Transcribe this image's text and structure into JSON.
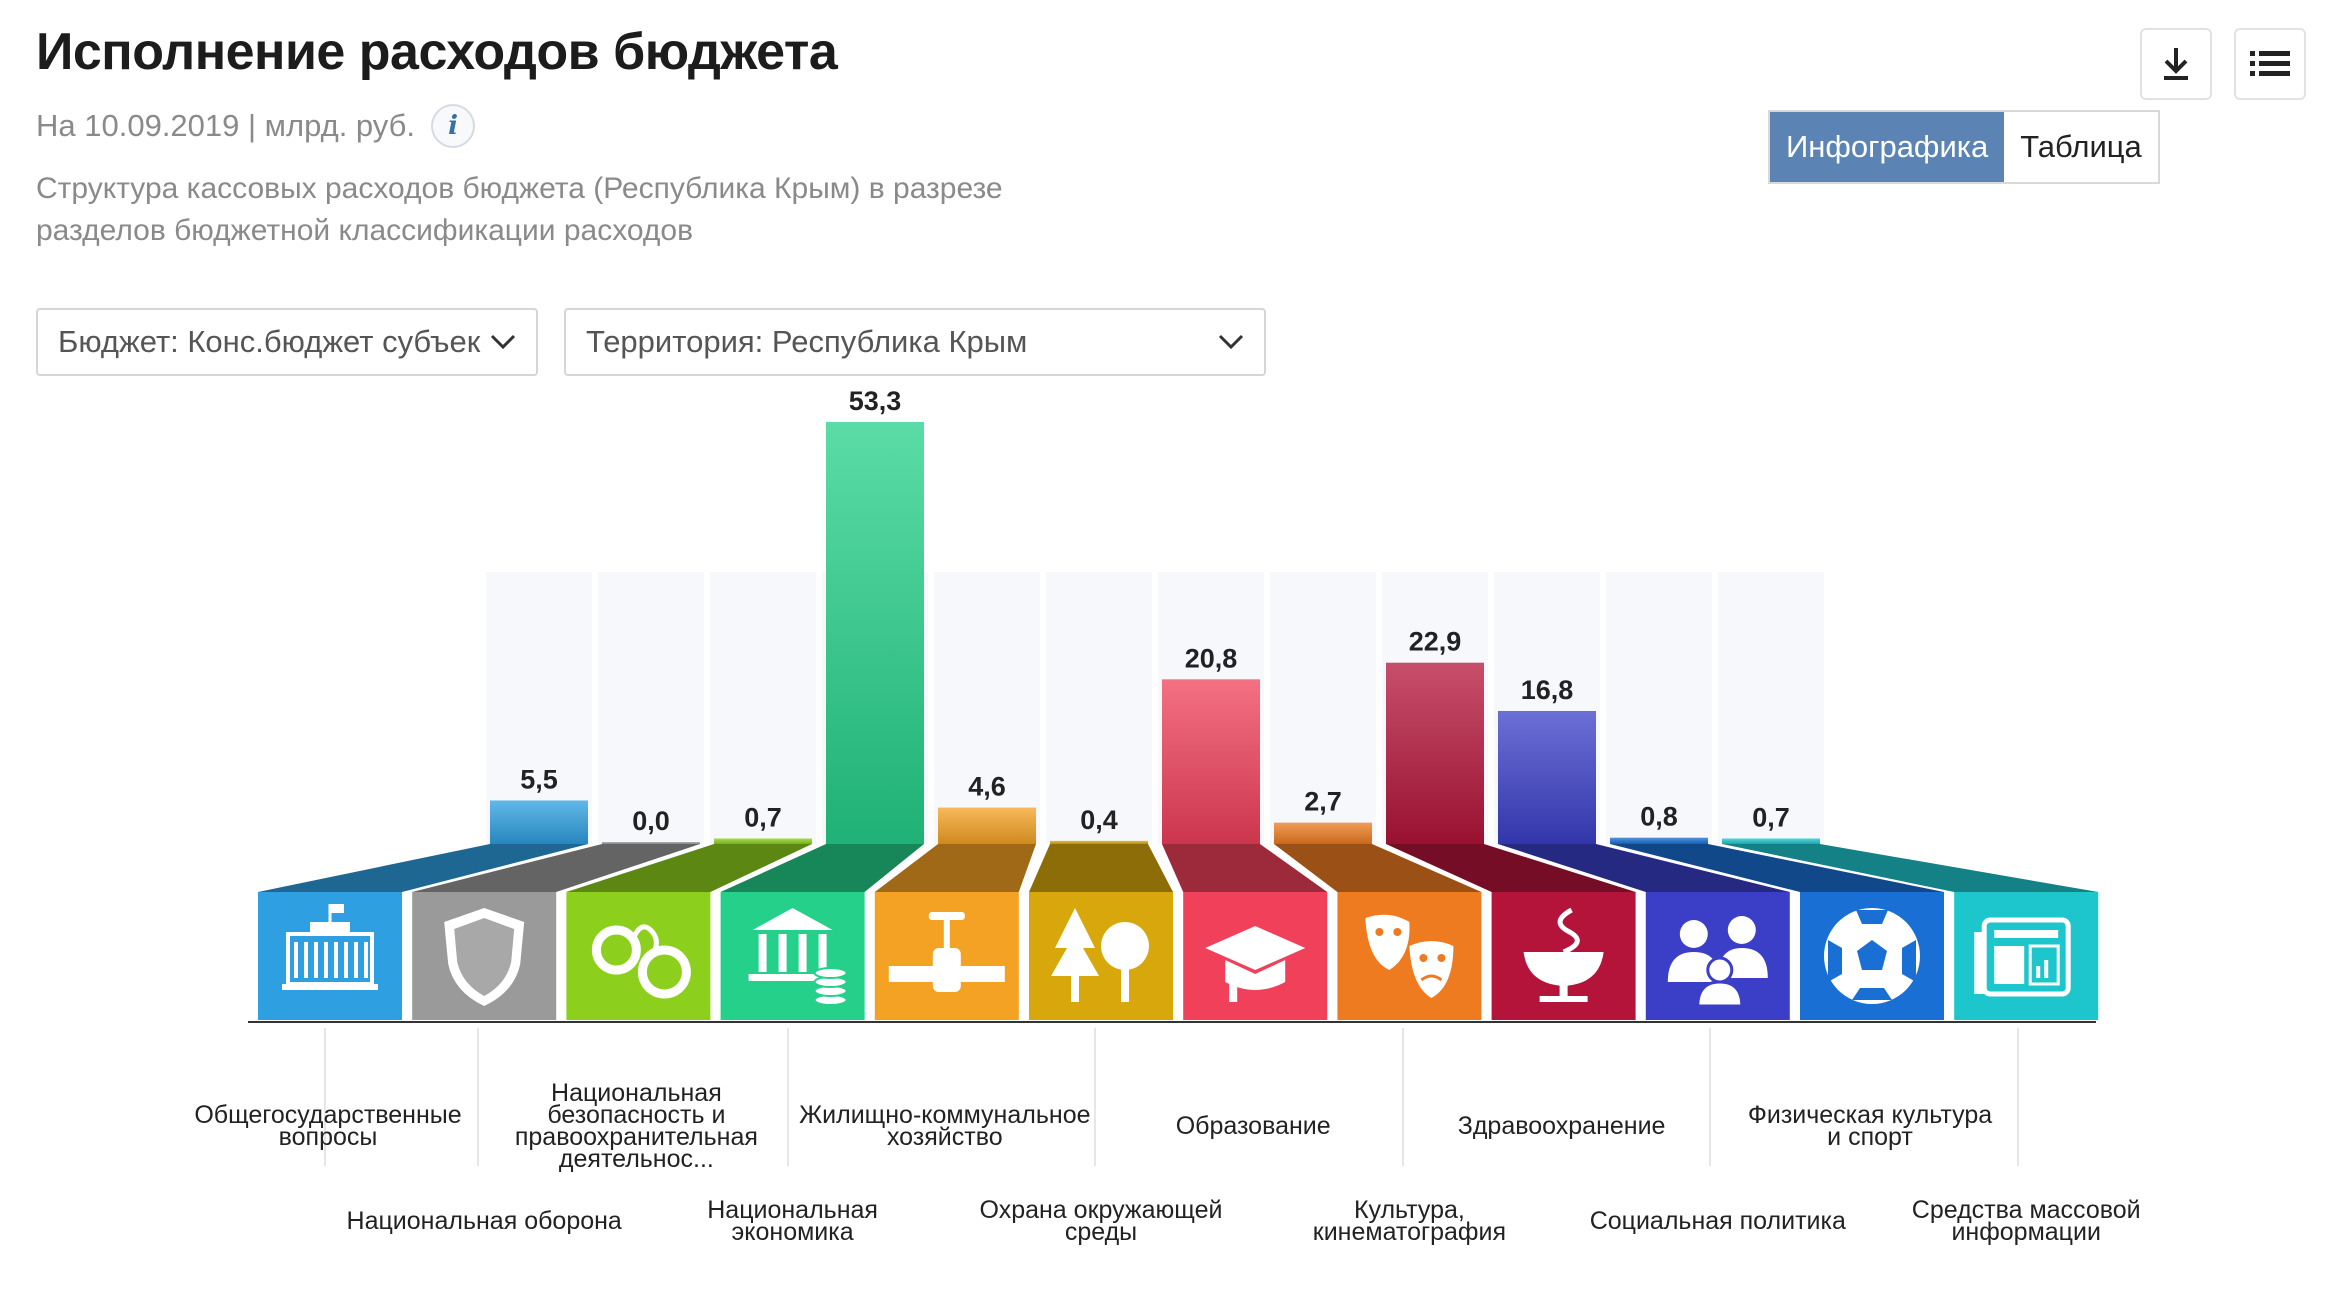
{
  "header": {
    "title": "Исполнение расходов бюджета",
    "date": "На 10.09.2019 | млрд. руб.",
    "info_glyph": "i",
    "description": "Структура кассовых расходов бюджета (Республика Крым) в разрезе разделов бюджетной классификации расходов"
  },
  "toolbar": {
    "download_icon": "download-icon",
    "menu_icon": "list-menu-icon"
  },
  "view_toggle": {
    "infographic_label": "Инфографика",
    "table_label": "Таблица",
    "active": "infographic"
  },
  "filters": {
    "budget": "Бюджет: Конс.бюджет субъек",
    "territory": "Территория: Республика Крым"
  },
  "chart_data": {
    "type": "bar",
    "categories": [
      "Общегосударственные вопросы",
      "Национальная оборона",
      "Национальная безопасность и правоохранительная деятельнос...",
      "Национальная экономика",
      "Жилищно-коммунальное хозяйство",
      "Охрана окружающей среды",
      "Образование",
      "Культура, кинематография",
      "Здравоохранение",
      "Социальная политика",
      "Физическая культура и спорт",
      "Средства массовой информации"
    ],
    "values": [
      5.5,
      0.0,
      0.7,
      53.3,
      4.6,
      0.4,
      20.8,
      2.7,
      22.9,
      16.8,
      0.8,
      0.7
    ],
    "value_labels": [
      "5,5",
      "0,0",
      "0,7",
      "53,3",
      "4,6",
      "0,4",
      "20,8",
      "2,7",
      "22,9",
      "16,8",
      "0,8",
      "0,7"
    ],
    "icons": [
      "government-building-icon",
      "shield-icon",
      "handcuffs-icon",
      "bank-coins-icon",
      "pipe-valve-icon",
      "trees-icon",
      "graduation-cap-icon",
      "theater-masks-icon",
      "medical-bowl-icon",
      "people-icon",
      "football-icon",
      "newspaper-icon"
    ],
    "colors": [
      "#2e9fe0",
      "#9a9a9a",
      "#8ccf1c",
      "#24d08a",
      "#f4a223",
      "#d8a70c",
      "#f0405a",
      "#ee7b20",
      "#b4143a",
      "#3b3fc8",
      "#1a6fd4",
      "#1dc6cc"
    ],
    "ylim": [
      0,
      53.3
    ],
    "title": "",
    "xlabel": "",
    "ylabel": ""
  }
}
